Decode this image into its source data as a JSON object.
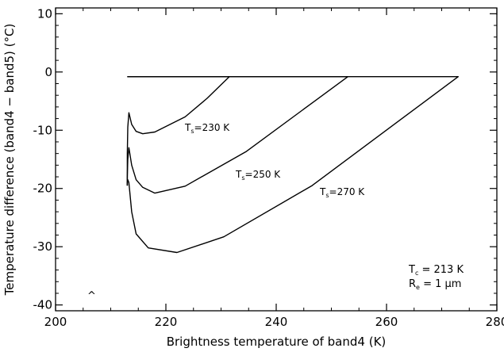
{
  "chart_data": {
    "type": "line",
    "xlabel": "Brightness temperature of band4 (K)",
    "ylabel": "Temperature difference (band4 − band5) (°C)",
    "xlim": [
      200,
      280
    ],
    "ylim": [
      -41,
      11
    ],
    "xticks": [
      200,
      220,
      240,
      260,
      280
    ],
    "yticks": [
      -40,
      -30,
      -20,
      -10,
      0,
      10
    ],
    "x_tick_labels": [
      "200",
      "220",
      "240",
      "260",
      "280"
    ],
    "y_tick_labels": [
      "-40",
      "-30",
      "-20",
      "-10",
      "0",
      "10"
    ],
    "grid": false,
    "series": [
      {
        "label_main": "T",
        "label_sub": "s",
        "label_rest": "=230 K",
        "x": [
          213.0,
          213.0,
          213.1,
          213.3,
          213.8,
          214.6,
          215.8,
          218.0,
          223.5,
          227.5,
          231.5,
          213.0
        ],
        "y": [
          -19.5,
          -14.0,
          -9.5,
          -7.0,
          -9.0,
          -10.2,
          -10.6,
          -10.3,
          -7.7,
          -4.5,
          -0.8,
          -0.8
        ]
      },
      {
        "label_main": "T",
        "label_sub": "s",
        "label_rest": "=250 K",
        "x": [
          213.0,
          213.0,
          213.1,
          213.3,
          213.8,
          214.6,
          215.8,
          218.0,
          223.5,
          234.5,
          253.0,
          213.0
        ],
        "y": [
          -19.5,
          -18.0,
          -15.0,
          -13.0,
          -16.0,
          -18.5,
          -19.8,
          -20.8,
          -19.6,
          -13.7,
          -0.8,
          -0.8
        ]
      },
      {
        "label_main": "T",
        "label_sub": "s",
        "label_rest": "=270 K",
        "x": [
          213.0,
          213.0,
          213.1,
          213.3,
          213.8,
          214.6,
          216.8,
          222.0,
          230.5,
          246.5,
          273.0,
          213.0
        ],
        "y": [
          -19.5,
          -19.0,
          -18.5,
          -19.0,
          -24.0,
          -27.8,
          -30.2,
          -31.0,
          -28.3,
          -19.5,
          -0.8,
          -0.8
        ]
      }
    ],
    "annotations": {
      "tc": {
        "main": "T",
        "sub": "c",
        "rest": " = 213 K"
      },
      "re": {
        "main": "R",
        "sub": "e",
        "rest": " = 1 μm"
      },
      "stray_mark": "^"
    }
  }
}
